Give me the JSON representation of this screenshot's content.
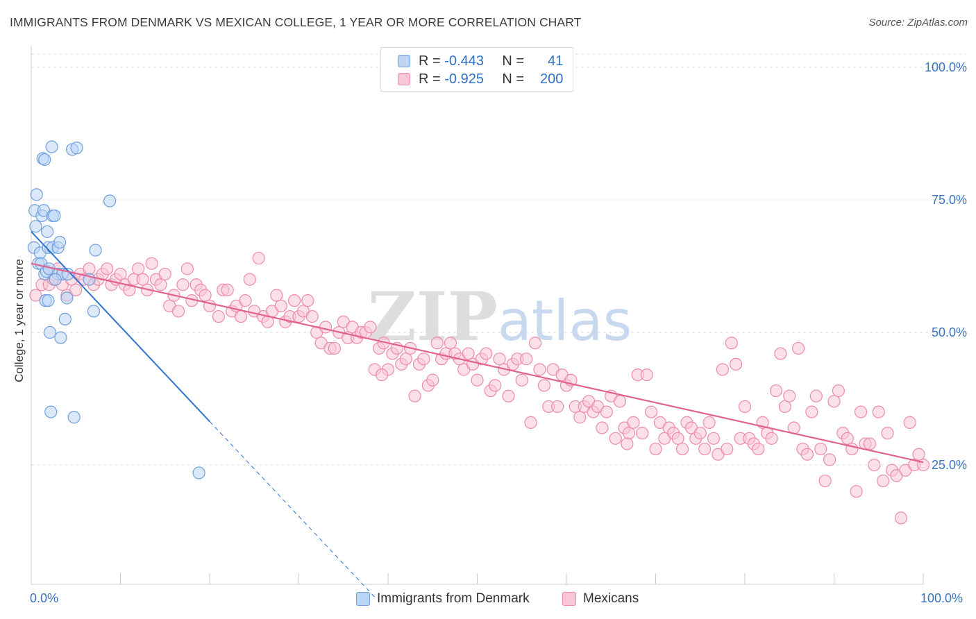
{
  "header": {
    "title": "IMMIGRANTS FROM DENMARK VS MEXICAN COLLEGE, 1 YEAR OR MORE CORRELATION CHART",
    "source": "Source: ZipAtlas.com"
  },
  "watermark": "ZIPatlas",
  "stats": [
    {
      "r_label": "R =",
      "r_value": "-0.443",
      "n_label": "N =",
      "n_value": "41",
      "color": "#9ec3ee"
    },
    {
      "r_label": "R =",
      "r_value": "-0.925",
      "n_label": "N =",
      "n_value": "200",
      "color": "#f5b3c8"
    }
  ],
  "colors": {
    "blue_fill": "#bcd5f5",
    "blue_stroke": "#6f9fde",
    "blue_line": "#2f74d0",
    "pink_fill": "#f9c6d6",
    "pink_stroke": "#ee8aab",
    "pink_line": "#e0628f",
    "axis_text": "#3a74c0",
    "grid": "#dddddd"
  },
  "chart_data": {
    "type": "scatter",
    "title": "IMMIGRANTS FROM DENMARK VS MEXICAN COLLEGE, 1 YEAR OR MORE CORRELATION CHART",
    "xlabel": "",
    "ylabel": "College, 1 year or more",
    "xlim": [
      0,
      100
    ],
    "ylim": [
      0,
      100
    ],
    "x_tick_labels": [
      {
        "value": 0,
        "label": "0.0%"
      },
      {
        "value": 100,
        "label": "100.0%"
      }
    ],
    "y_tick_labels": [
      {
        "value": 25,
        "label": "25.0%"
      },
      {
        "value": 50,
        "label": "50.0%"
      },
      {
        "value": 75,
        "label": "75.0%"
      },
      {
        "value": 100,
        "label": "100.0%"
      }
    ],
    "grid": true,
    "legend": "bottom",
    "series": [
      {
        "name": "Immigrants from Denmark",
        "trend": {
          "x0": 0,
          "y0": 69.0,
          "x1": 20,
          "y1": 33.2,
          "dashed_to_x": 38.5
        },
        "points": [
          [
            0.3,
            66
          ],
          [
            0.4,
            73
          ],
          [
            0.5,
            70
          ],
          [
            0.6,
            76
          ],
          [
            0.8,
            63
          ],
          [
            1.0,
            65
          ],
          [
            1.1,
            63
          ],
          [
            1.2,
            72
          ],
          [
            1.4,
            73
          ],
          [
            1.3,
            82.8
          ],
          [
            1.5,
            82.6
          ],
          [
            1.8,
            69
          ],
          [
            1.9,
            66
          ],
          [
            1.6,
            56
          ],
          [
            1.9,
            56
          ],
          [
            1.5,
            61
          ],
          [
            1.7,
            61.5
          ],
          [
            2.0,
            62
          ],
          [
            2.1,
            50
          ],
          [
            2.2,
            35
          ],
          [
            2.3,
            85
          ],
          [
            2.4,
            72
          ],
          [
            2.6,
            72
          ],
          [
            2.4,
            66
          ],
          [
            3.0,
            66
          ],
          [
            3.2,
            67
          ],
          [
            3.0,
            61
          ],
          [
            3.3,
            49
          ],
          [
            3.5,
            61
          ],
          [
            3.8,
            52.5
          ],
          [
            4.0,
            56.5
          ],
          [
            4.1,
            61
          ],
          [
            4.6,
            84.5
          ],
          [
            5.1,
            84.8
          ],
          [
            4.8,
            34
          ],
          [
            6.5,
            60
          ],
          [
            7.0,
            54
          ],
          [
            7.2,
            65.5
          ],
          [
            8.8,
            74.8
          ],
          [
            18.8,
            23.5
          ],
          [
            2.7,
            60
          ]
        ]
      },
      {
        "name": "Mexicans",
        "trend": {
          "x0": 0,
          "y0": 63.0,
          "x1": 100,
          "y1": 25.5
        },
        "points": [
          [
            0.5,
            57
          ],
          [
            1.2,
            59
          ],
          [
            2,
            59
          ],
          [
            2.5,
            60
          ],
          [
            3,
            62
          ],
          [
            3.5,
            59
          ],
          [
            4,
            57
          ],
          [
            4.5,
            60
          ],
          [
            5,
            58
          ],
          [
            5.5,
            61
          ],
          [
            6,
            60
          ],
          [
            6.5,
            62
          ],
          [
            7,
            59
          ],
          [
            7.5,
            60
          ],
          [
            8,
            61
          ],
          [
            8.5,
            62
          ],
          [
            9,
            59
          ],
          [
            9.5,
            60
          ],
          [
            10,
            61
          ],
          [
            10.5,
            59
          ],
          [
            11,
            58
          ],
          [
            11.5,
            60
          ],
          [
            12,
            62
          ],
          [
            12.5,
            60
          ],
          [
            13,
            58
          ],
          [
            13.5,
            63
          ],
          [
            14,
            60
          ],
          [
            14.5,
            59
          ],
          [
            15,
            61
          ],
          [
            15.5,
            55
          ],
          [
            16,
            57
          ],
          [
            16.5,
            54
          ],
          [
            17,
            59
          ],
          [
            17.5,
            62
          ],
          [
            18,
            56
          ],
          [
            18.5,
            59
          ],
          [
            19,
            58
          ],
          [
            19.5,
            57
          ],
          [
            20,
            55
          ],
          [
            21,
            53
          ],
          [
            21.5,
            58
          ],
          [
            22,
            58
          ],
          [
            22.5,
            54
          ],
          [
            23,
            55
          ],
          [
            23.5,
            53
          ],
          [
            24,
            56
          ],
          [
            24.5,
            60
          ],
          [
            25,
            54
          ],
          [
            25.5,
            64
          ],
          [
            26,
            53
          ],
          [
            26.5,
            52
          ],
          [
            27,
            54
          ],
          [
            27.5,
            57
          ],
          [
            28,
            55
          ],
          [
            28.5,
            52
          ],
          [
            29,
            53
          ],
          [
            29.5,
            56
          ],
          [
            30,
            53
          ],
          [
            30.5,
            54
          ],
          [
            31,
            56
          ],
          [
            31.5,
            53
          ],
          [
            32,
            50
          ],
          [
            32.5,
            48
          ],
          [
            33,
            51
          ],
          [
            33.5,
            47
          ],
          [
            34,
            47
          ],
          [
            34.5,
            50
          ],
          [
            35,
            52
          ],
          [
            35.5,
            49
          ],
          [
            36,
            51
          ],
          [
            36.5,
            49
          ],
          [
            37,
            50
          ],
          [
            37.5,
            50
          ],
          [
            38,
            51
          ],
          [
            38.5,
            43
          ],
          [
            39,
            47
          ],
          [
            39.5,
            48
          ],
          [
            40,
            43
          ],
          [
            40.5,
            46
          ],
          [
            41,
            47
          ],
          [
            41.5,
            44
          ],
          [
            42,
            45
          ],
          [
            42.5,
            47
          ],
          [
            43,
            38
          ],
          [
            43.5,
            44
          ],
          [
            44,
            45
          ],
          [
            44.5,
            40
          ],
          [
            45,
            41
          ],
          [
            45.5,
            48
          ],
          [
            46,
            45
          ],
          [
            46.5,
            46
          ],
          [
            47,
            48
          ],
          [
            47.5,
            46
          ],
          [
            48,
            45
          ],
          [
            48.5,
            43
          ],
          [
            49,
            46
          ],
          [
            49.5,
            44
          ],
          [
            50,
            41
          ],
          [
            50.5,
            45
          ],
          [
            51,
            46
          ],
          [
            51.5,
            39
          ],
          [
            52,
            40
          ],
          [
            52.5,
            45
          ],
          [
            53,
            43
          ],
          [
            53.5,
            38
          ],
          [
            54,
            44
          ],
          [
            54.5,
            45
          ],
          [
            55,
            41
          ],
          [
            55.5,
            45
          ],
          [
            56,
            33
          ],
          [
            56.5,
            48
          ],
          [
            57,
            43
          ],
          [
            57.5,
            40
          ],
          [
            58,
            36
          ],
          [
            58.5,
            43
          ],
          [
            59,
            36
          ],
          [
            59.5,
            42
          ],
          [
            60,
            40
          ],
          [
            60.5,
            41
          ],
          [
            61,
            36
          ],
          [
            61.5,
            34
          ],
          [
            62,
            36
          ],
          [
            62.5,
            37
          ],
          [
            63,
            35
          ],
          [
            63.5,
            36
          ],
          [
            64,
            32
          ],
          [
            64.5,
            35
          ],
          [
            65,
            38
          ],
          [
            65.5,
            30
          ],
          [
            66,
            37
          ],
          [
            66.5,
            32
          ],
          [
            67,
            31
          ],
          [
            67.5,
            33
          ],
          [
            68,
            42
          ],
          [
            68.5,
            31
          ],
          [
            69,
            42
          ],
          [
            69.5,
            35
          ],
          [
            70,
            28
          ],
          [
            70.5,
            33
          ],
          [
            71,
            30
          ],
          [
            71.5,
            32
          ],
          [
            72,
            31
          ],
          [
            72.5,
            30
          ],
          [
            73,
            28
          ],
          [
            73.5,
            33
          ],
          [
            74,
            32
          ],
          [
            74.5,
            30
          ],
          [
            75,
            31
          ],
          [
            75.5,
            28
          ],
          [
            76,
            33
          ],
          [
            76.5,
            30
          ],
          [
            77,
            27
          ],
          [
            77.5,
            43
          ],
          [
            78,
            28
          ],
          [
            78.5,
            48
          ],
          [
            79,
            44
          ],
          [
            79.5,
            30
          ],
          [
            80,
            36
          ],
          [
            80.5,
            30
          ],
          [
            81,
            29
          ],
          [
            81.5,
            28
          ],
          [
            82,
            33
          ],
          [
            82.5,
            31
          ],
          [
            83,
            30
          ],
          [
            83.5,
            39
          ],
          [
            84,
            46
          ],
          [
            84.5,
            36
          ],
          [
            85,
            38
          ],
          [
            85.5,
            32
          ],
          [
            86,
            47
          ],
          [
            86.5,
            28
          ],
          [
            87,
            27
          ],
          [
            87.5,
            35
          ],
          [
            88,
            38
          ],
          [
            88.5,
            28
          ],
          [
            89,
            22
          ],
          [
            89.5,
            26
          ],
          [
            90,
            37
          ],
          [
            90.5,
            39
          ],
          [
            91,
            31
          ],
          [
            91.5,
            30
          ],
          [
            92,
            28
          ],
          [
            92.5,
            20
          ],
          [
            93,
            35
          ],
          [
            93.5,
            29
          ],
          [
            94,
            29
          ],
          [
            94.5,
            25
          ],
          [
            95,
            35
          ],
          [
            95.5,
            22
          ],
          [
            96,
            31
          ],
          [
            96.5,
            24
          ],
          [
            97,
            23
          ],
          [
            97.5,
            15
          ],
          [
            98,
            24
          ],
          [
            98.5,
            33
          ],
          [
            99,
            25
          ],
          [
            99.5,
            27
          ],
          [
            100,
            25
          ],
          [
            66.8,
            29
          ],
          [
            39.3,
            42
          ]
        ]
      }
    ]
  }
}
